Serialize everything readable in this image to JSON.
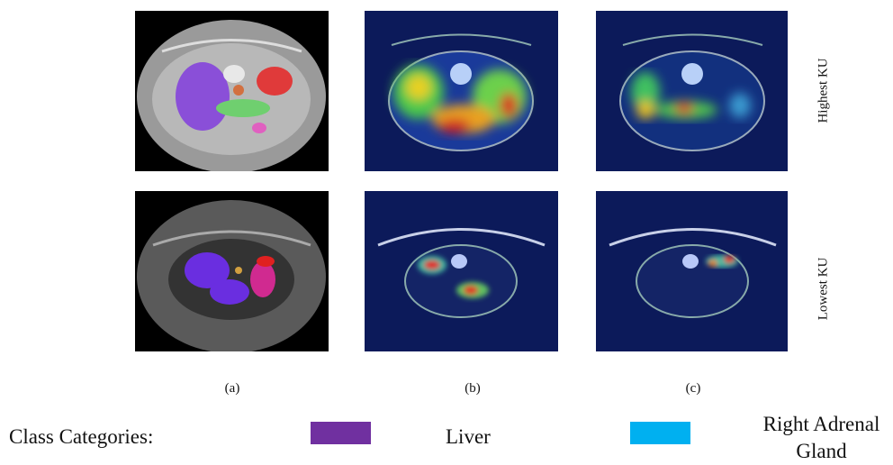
{
  "row_labels": [
    "Highest KU",
    "Lowest KU"
  ],
  "column_labels": [
    "(a)",
    "(b)",
    "(c)"
  ],
  "legend": {
    "title": "Class Categories:",
    "items": [
      {
        "label": "Liver",
        "color": "#7030a0"
      },
      {
        "label": "Right Adrenal Gland",
        "color": "#00b0f0"
      }
    ]
  }
}
